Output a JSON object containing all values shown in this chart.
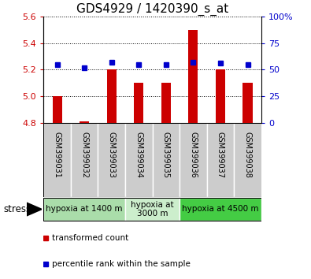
{
  "title": "GDS4929 / 1420390_s_at",
  "samples": [
    "GSM399031",
    "GSM399032",
    "GSM399033",
    "GSM399034",
    "GSM399035",
    "GSM399036",
    "GSM399037",
    "GSM399038"
  ],
  "transformed_count": [
    5.0,
    4.81,
    5.2,
    5.1,
    5.1,
    5.5,
    5.2,
    5.1
  ],
  "percentile_rank": [
    55,
    52,
    57,
    55,
    55,
    57,
    56,
    55
  ],
  "bar_baseline": 4.8,
  "ylim": [
    4.8,
    5.6
  ],
  "yticks": [
    4.8,
    5.0,
    5.2,
    5.4,
    5.6
  ],
  "right_yticks": [
    0,
    25,
    50,
    75,
    100
  ],
  "right_ylim": [
    0,
    100
  ],
  "bar_color": "#cc0000",
  "dot_color": "#0000cc",
  "groups": [
    {
      "label": "hypoxia at 1400 m",
      "start": 0,
      "end": 2,
      "color": "#aaddaa"
    },
    {
      "label": "hypoxia at\n3000 m",
      "start": 3,
      "end": 4,
      "color": "#cceecc"
    },
    {
      "label": "hypoxia at 4500 m",
      "start": 5,
      "end": 7,
      "color": "#44cc44"
    }
  ],
  "stress_label": "stress",
  "legend_bar_label": "transformed count",
  "legend_dot_label": "percentile rank within the sample",
  "title_fontsize": 11,
  "tick_fontsize": 8,
  "sample_fontsize": 7,
  "group_fontsize": 7.5,
  "legend_fontsize": 7.5,
  "background_color": "#ffffff",
  "plot_bg_color": "#ffffff",
  "sample_bg_color": "#cccccc",
  "left_tick_color": "#cc0000",
  "right_tick_color": "#0000cc"
}
